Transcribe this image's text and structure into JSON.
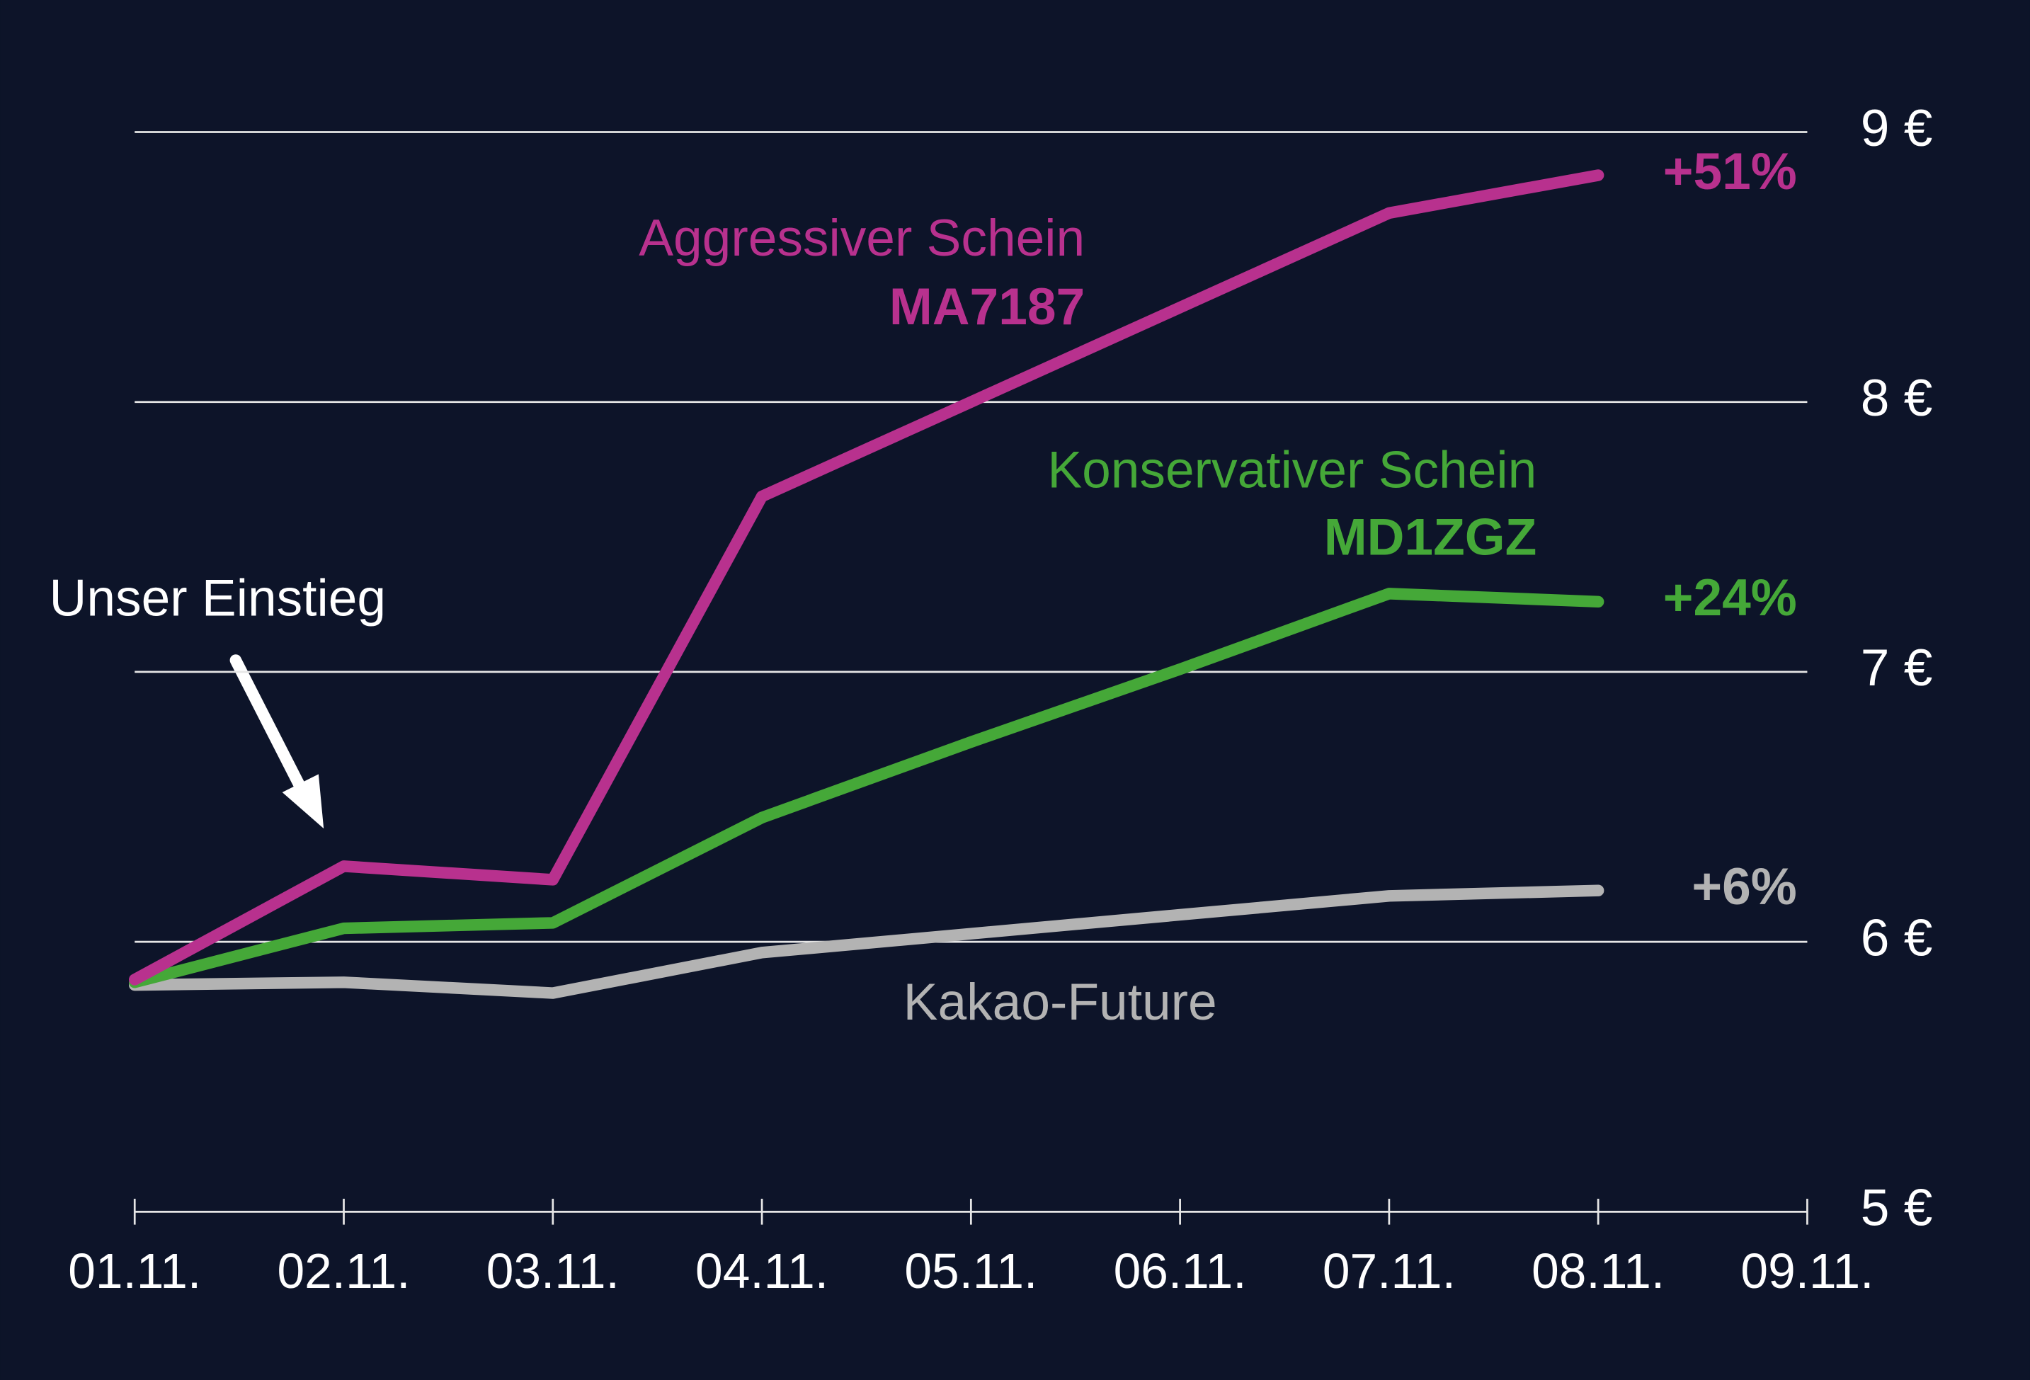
{
  "chart_data": {
    "type": "line",
    "categories": [
      "01.11.",
      "02.11.",
      "03.11.",
      "04.11.",
      "05.11.",
      "06.11.",
      "07.11.",
      "08.11.",
      "09.11."
    ],
    "series": [
      {
        "name": "Aggressiver Schein",
        "code": "MA7187",
        "end_label": "+51%",
        "color": "#b8318e",
        "values": [
          5.86,
          6.28,
          6.23,
          7.65,
          8.0,
          8.35,
          8.7,
          8.84,
          null
        ]
      },
      {
        "name": "Konservativer Schein",
        "code": "MD1ZGZ",
        "end_label": "+24%",
        "color": "#45a838",
        "values": [
          5.85,
          6.05,
          6.07,
          6.46,
          6.74,
          7.01,
          7.29,
          7.26,
          null
        ]
      },
      {
        "name": "Kakao-Future",
        "end_label": "+6%",
        "color": "#b3b3b3",
        "values": [
          5.84,
          5.85,
          5.81,
          5.96,
          6.03,
          6.1,
          6.17,
          6.19,
          null
        ]
      }
    ],
    "annotation": "Unser Einstieg",
    "ylim": [
      5,
      9
    ],
    "yticks": [
      {
        "value": 5,
        "label": "5 €"
      },
      {
        "value": 6,
        "label": "6 €"
      },
      {
        "value": 7,
        "label": "7 €"
      },
      {
        "value": 8,
        "label": "8 €"
      },
      {
        "value": 9,
        "label": "9 €"
      }
    ],
    "grid": true
  }
}
